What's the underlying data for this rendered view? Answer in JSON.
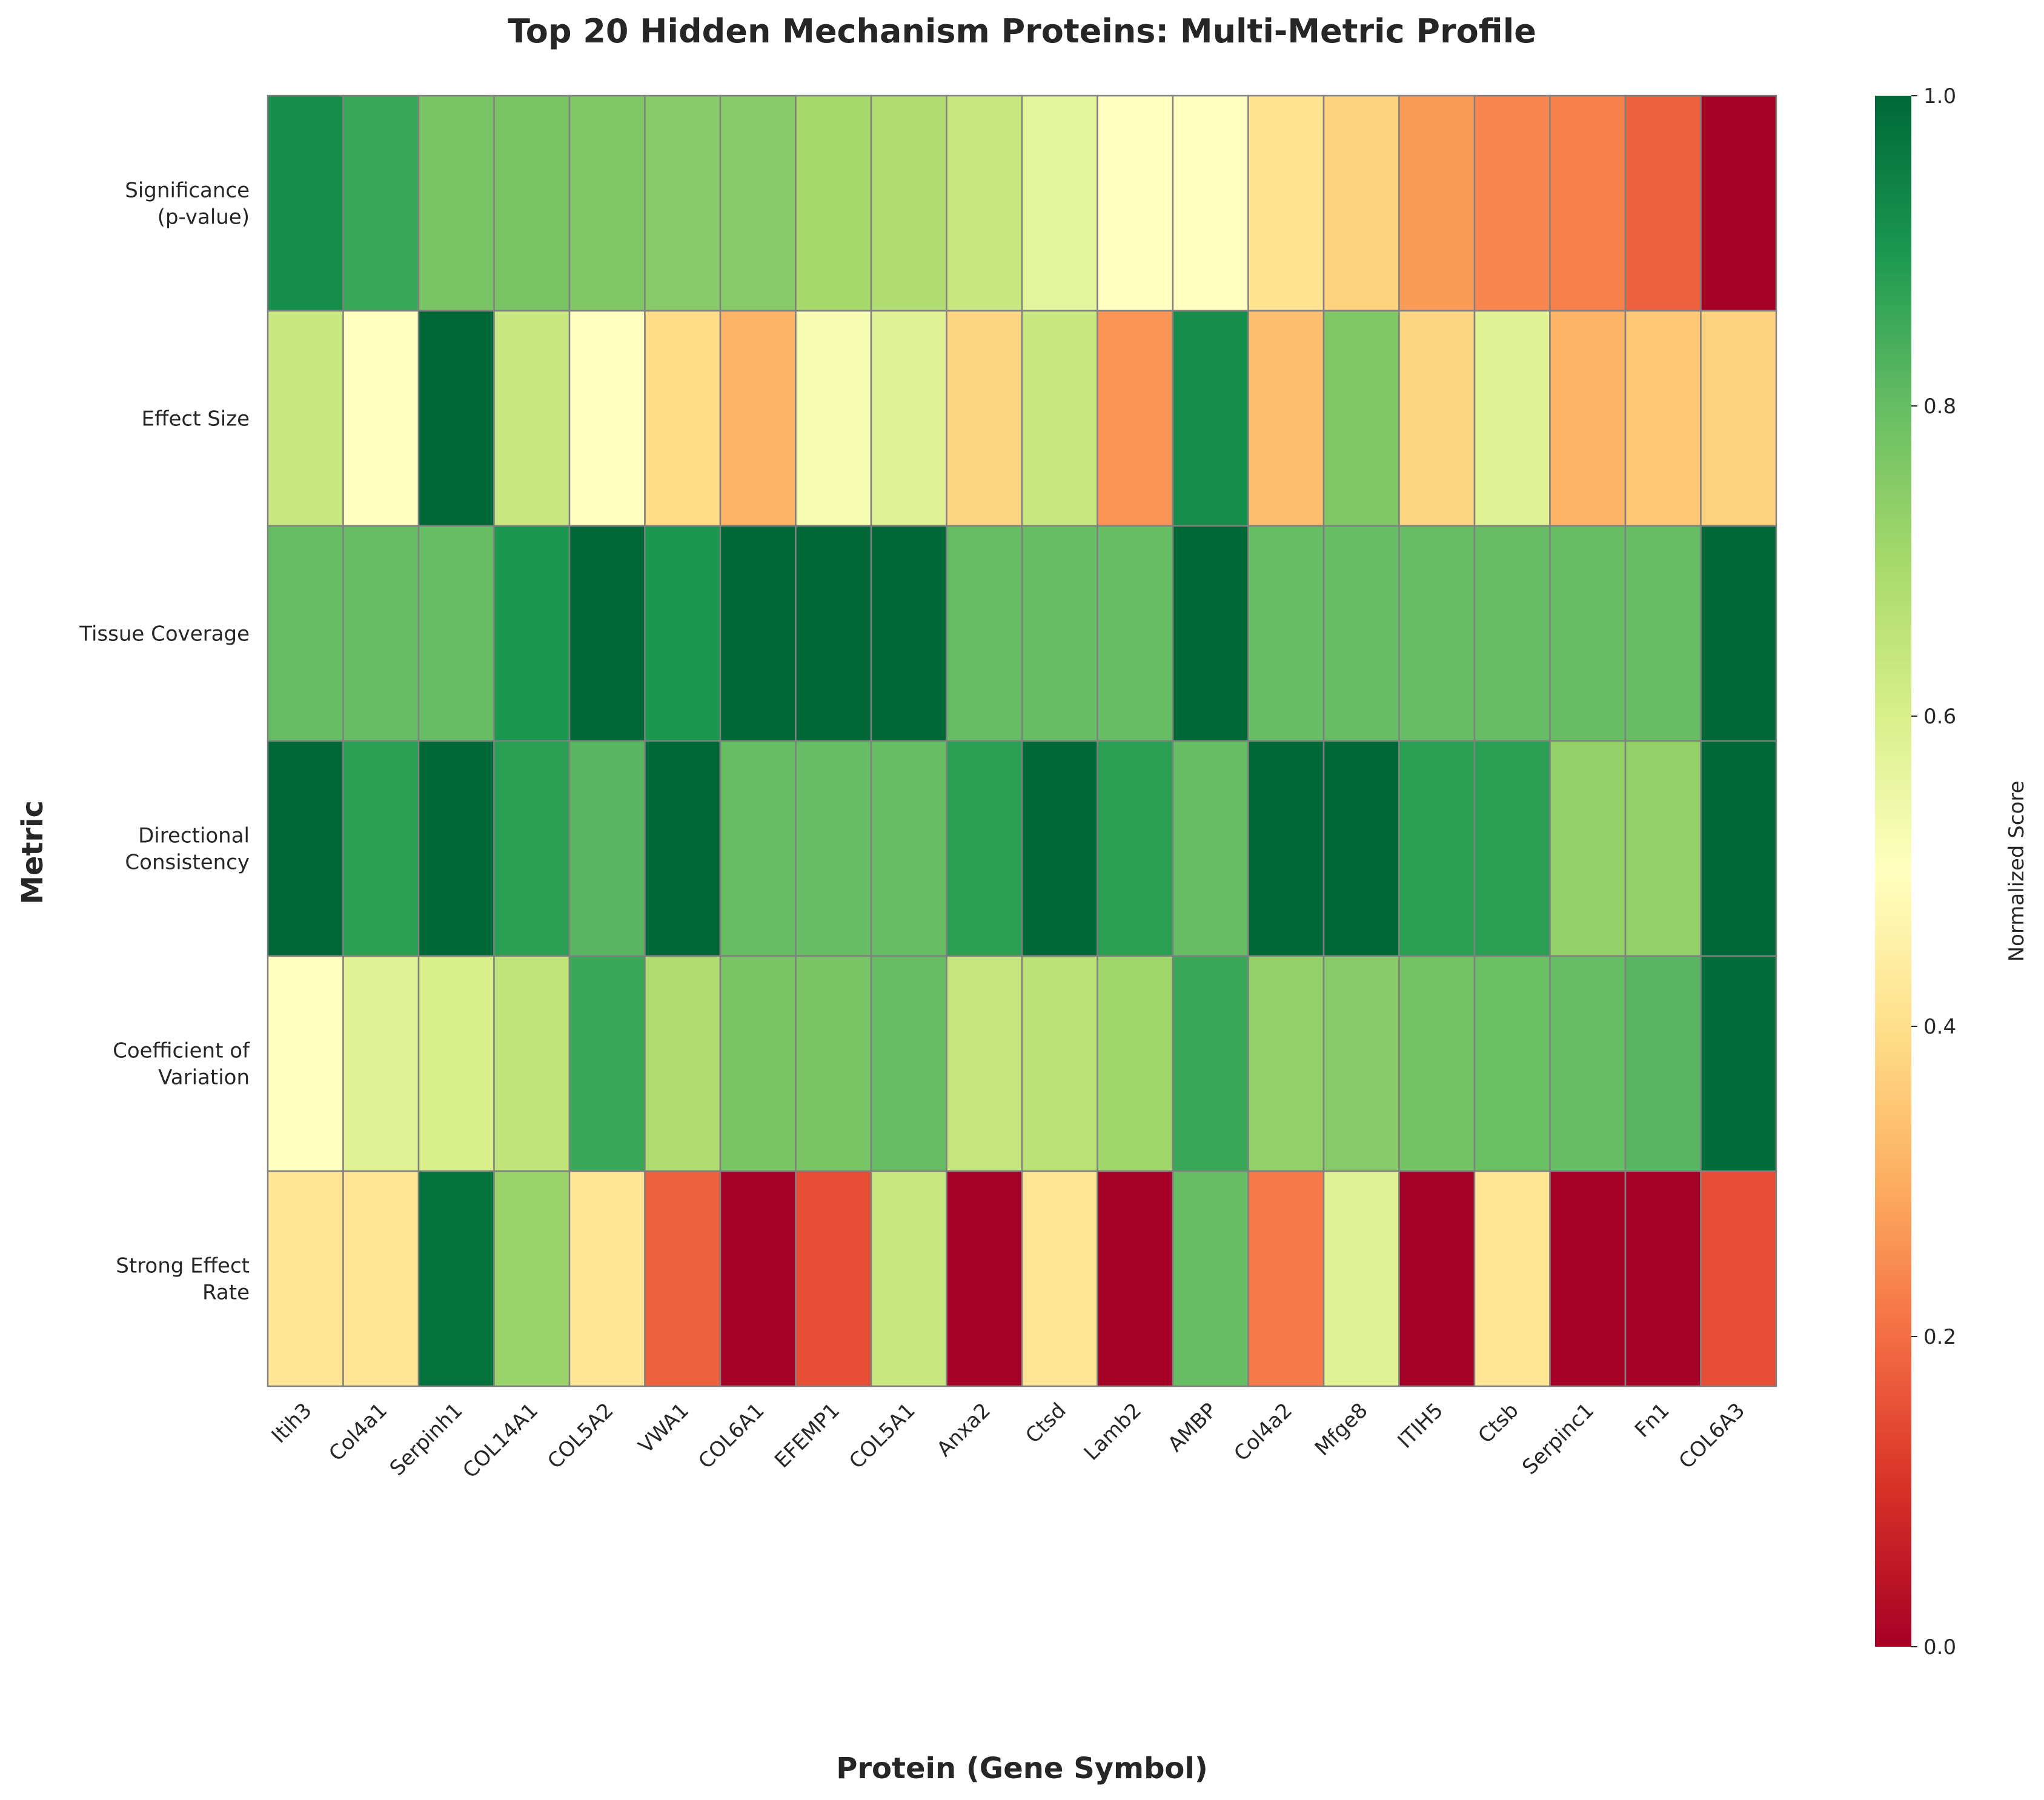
{
  "chart_data": {
    "type": "heatmap",
    "title": "Top 20 Hidden Mechanism Proteins: Multi-Metric Profile",
    "xlabel": "Protein (Gene Symbol)",
    "ylabel": "Metric",
    "x_categories": [
      "Itih3",
      "Col4a1",
      "Serpinh1",
      "COL14A1",
      "COL5A2",
      "VWA1",
      "COL6A1",
      "EFEMP1",
      "COL5A1",
      "Anxa2",
      "Ctsd",
      "Lamb2",
      "AMBP",
      "Col4a2",
      "Mfge8",
      "ITIH5",
      "Ctsb",
      "Serpinc1",
      "Fn1",
      "COL6A3"
    ],
    "y_categories": [
      [
        "Significance",
        "(p-value)"
      ],
      [
        "Effect Size"
      ],
      [
        "Tissue Coverage"
      ],
      [
        "Directional",
        "Consistency"
      ],
      [
        "Coefficient of",
        "Variation"
      ],
      [
        "Strong Effect",
        "Rate"
      ]
    ],
    "values": [
      [
        0.92,
        0.86,
        0.77,
        0.77,
        0.76,
        0.75,
        0.75,
        0.7,
        0.68,
        0.63,
        0.57,
        0.5,
        0.5,
        0.41,
        0.37,
        0.27,
        0.24,
        0.23,
        0.18,
        0.0
      ],
      [
        0.63,
        0.5,
        1.0,
        0.63,
        0.5,
        0.39,
        0.31,
        0.52,
        0.58,
        0.38,
        0.63,
        0.26,
        0.92,
        0.33,
        0.76,
        0.38,
        0.58,
        0.31,
        0.35,
        0.37
      ],
      [
        0.8,
        0.8,
        0.8,
        0.9,
        1.0,
        0.9,
        1.0,
        1.0,
        1.0,
        0.8,
        0.8,
        0.8,
        1.0,
        0.8,
        0.8,
        0.8,
        0.8,
        0.8,
        0.8,
        1.0
      ],
      [
        1.0,
        0.88,
        1.0,
        0.88,
        0.82,
        1.0,
        0.8,
        0.8,
        0.8,
        0.88,
        1.0,
        0.88,
        0.8,
        1.0,
        1.0,
        0.88,
        0.88,
        0.73,
        0.73,
        1.0
      ],
      [
        0.5,
        0.58,
        0.6,
        0.65,
        0.86,
        0.68,
        0.77,
        0.77,
        0.8,
        0.64,
        0.66,
        0.71,
        0.86,
        0.73,
        0.75,
        0.78,
        0.79,
        0.8,
        0.82,
        0.99
      ],
      [
        0.42,
        0.42,
        0.98,
        0.72,
        0.42,
        0.18,
        0.0,
        0.15,
        0.63,
        0.0,
        0.42,
        0.0,
        0.8,
        0.22,
        0.58,
        0.0,
        0.42,
        0.0,
        0.0,
        0.15
      ]
    ],
    "vmin": 0,
    "vmax": 1,
    "colormap": "RdYlGn",
    "colorbar_label": "Normalized Score",
    "colorbar_ticks": [
      "0.0",
      "0.2",
      "0.4",
      "0.6",
      "0.8",
      "1.0"
    ],
    "grid": false,
    "cell_edge_color": "#808080"
  }
}
